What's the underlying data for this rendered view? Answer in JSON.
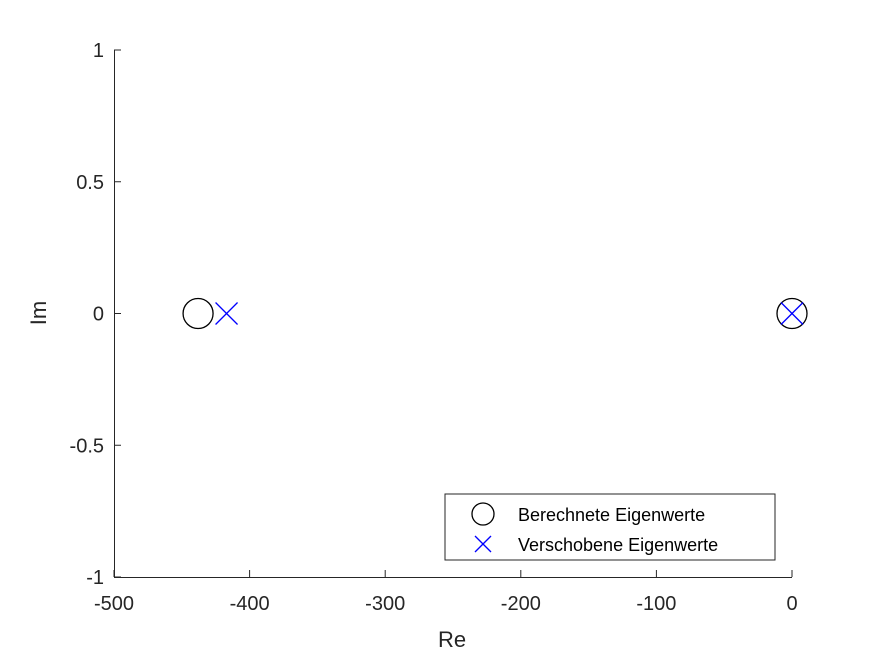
{
  "chart_data": {
    "type": "scatter",
    "xlabel": "Re",
    "ylabel": "Im",
    "xlim": [
      -500,
      0
    ],
    "ylim": [
      -1,
      1
    ],
    "xticks": [
      -500,
      -400,
      -300,
      -200,
      -100,
      0
    ],
    "yticks": [
      -1,
      -0.5,
      0,
      0.5,
      1
    ],
    "xtick_labels": [
      "-500",
      "-400",
      "-300",
      "-200",
      "-100",
      "0"
    ],
    "ytick_labels": [
      "-1",
      "-0.5",
      "0",
      "0.5",
      "1"
    ],
    "grid": false,
    "legend_position": "bottom-right",
    "series": [
      {
        "name": "Berechnete Eigenwerte",
        "marker": "circle",
        "color": "#000000",
        "points": [
          {
            "x": -438,
            "y": 0
          },
          {
            "x": 0,
            "y": 0
          }
        ]
      },
      {
        "name": "Verschobene Eigenwerte",
        "marker": "x",
        "color": "#0000ff",
        "points": [
          {
            "x": -417,
            "y": 0
          },
          {
            "x": 0,
            "y": 0
          }
        ]
      }
    ]
  }
}
